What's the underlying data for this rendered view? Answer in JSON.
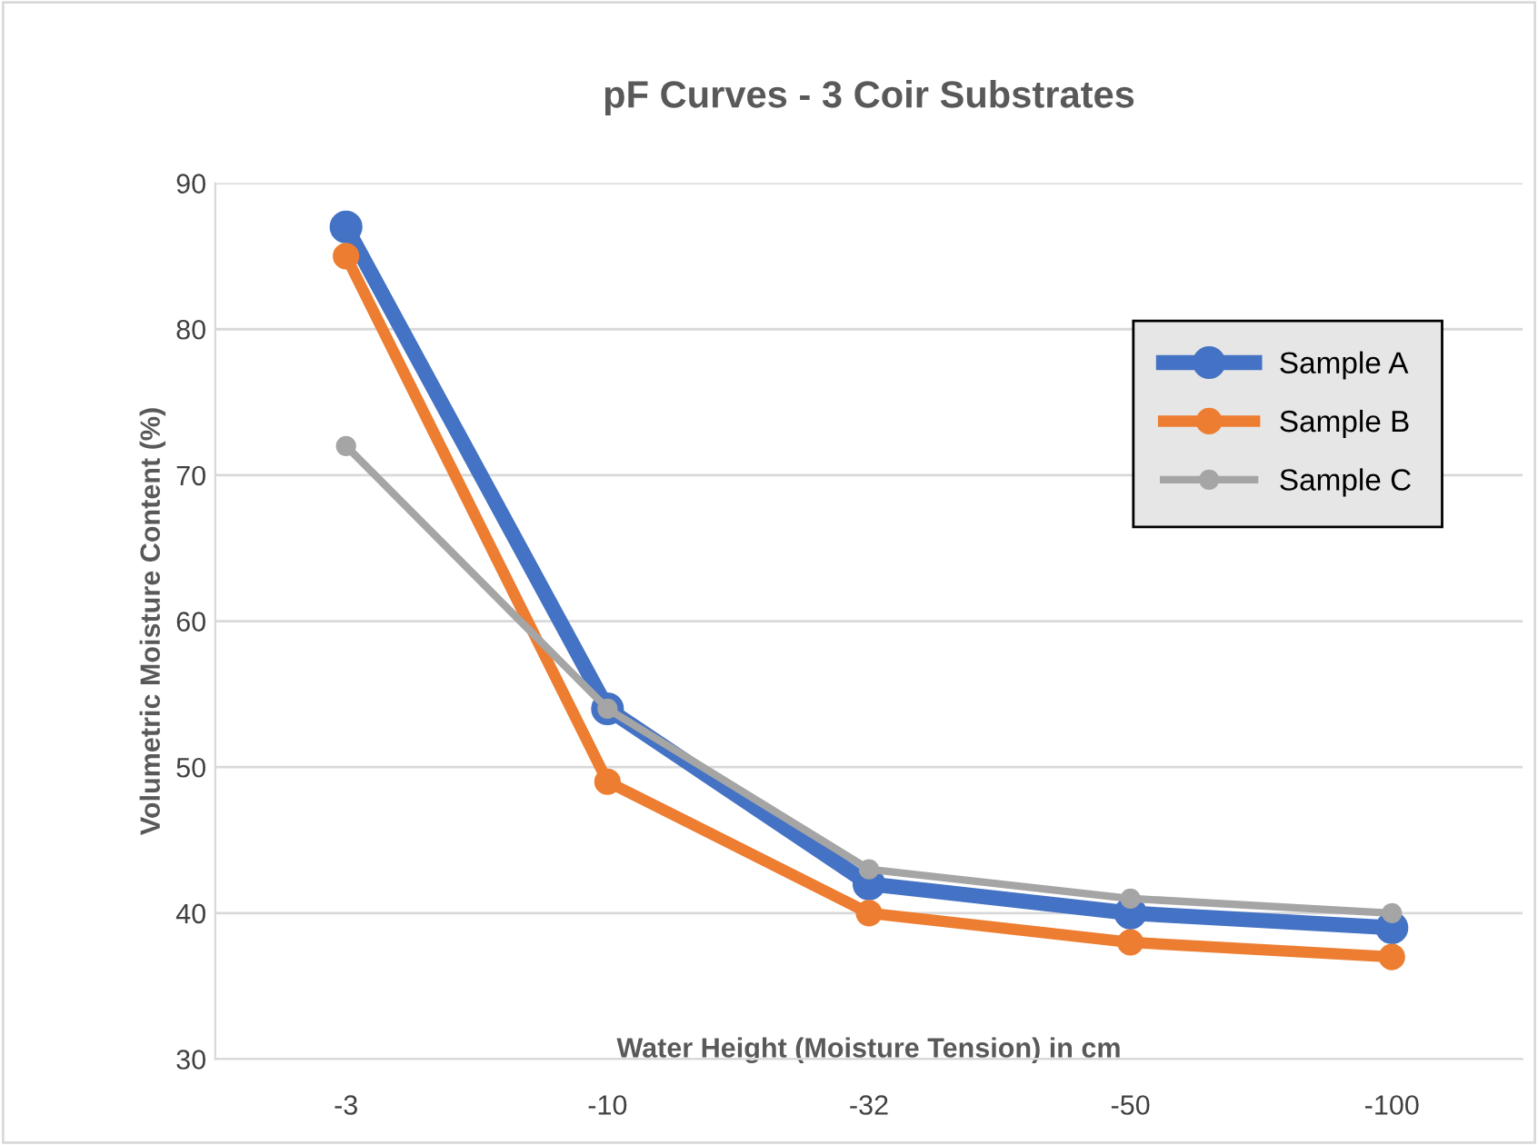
{
  "chart_data": {
    "type": "line",
    "title": "pF Curves - 3 Coir Substrates",
    "xlabel": "Water Height (Moisture Tension) in cm",
    "ylabel": "Volumetric Moisture Content (%)",
    "categories": [
      "-3",
      "-10",
      "-32",
      "-50",
      "-100"
    ],
    "series": [
      {
        "name": "Sample A",
        "color": "#4472c4",
        "values": [
          87,
          54,
          42,
          40,
          39
        ]
      },
      {
        "name": "Sample B",
        "color": "#ed7d31",
        "values": [
          85,
          49,
          40,
          38,
          37
        ]
      },
      {
        "name": "Sample C",
        "color": "#a5a5a5",
        "values": [
          72,
          54,
          43,
          41,
          40
        ]
      }
    ],
    "ylim": [
      30,
      90
    ],
    "yticks": [
      30,
      40,
      50,
      60,
      70,
      80,
      90
    ],
    "grid": "y",
    "legend": "top right",
    "marker": "circle",
    "line_style": "solid"
  }
}
